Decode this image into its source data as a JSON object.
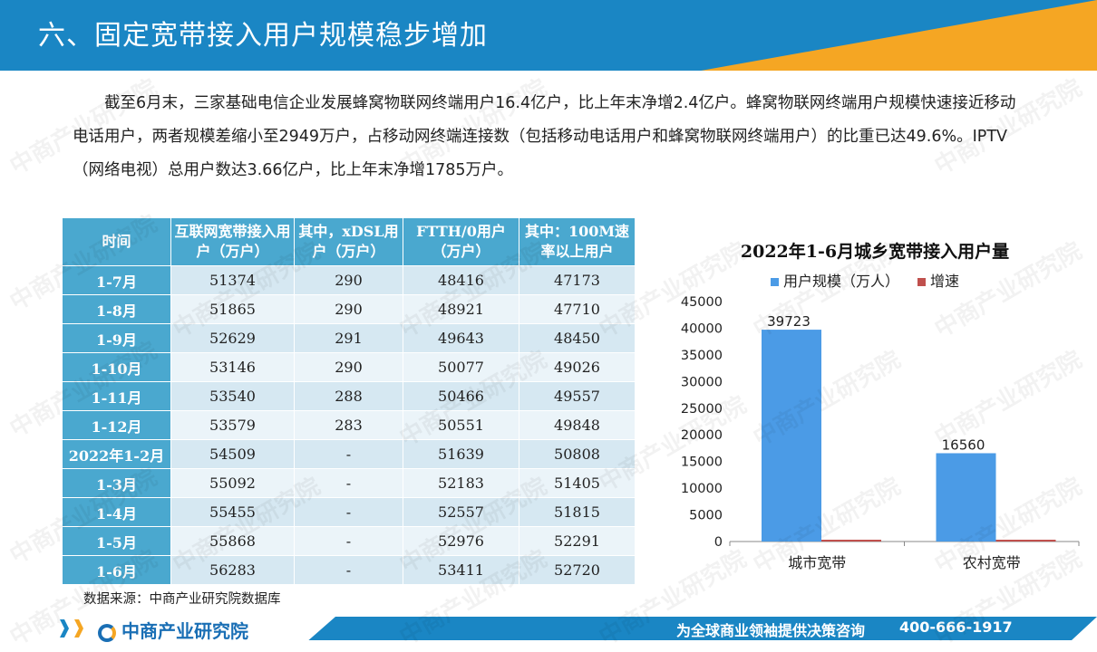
{
  "header": {
    "title": "六、固定宽带接入用户规模稳步增加"
  },
  "body": {
    "paragraph": "截至6月末，三家基础电信企业发展蜂窝物联网终端用户16.4亿户，比上年末净增2.4亿户。蜂窝物联网终端用户规模快速接近移动电话用户，两者规模差缩小至2949万户，占移动网终端连接数（包括移动电话用户和蜂窝物联网终端用户）的比重已达49.6%。IPTV（网络电视）总用户数达3.66亿户，比上年末净增1785万户。"
  },
  "table": {
    "headers": [
      "时间",
      "互联网宽带接入用户（万户）",
      "其中，xDSL用户（万户）",
      "FTTH/0用户（万户）",
      "其中：100M速率以上用户"
    ],
    "rows": [
      [
        "1-7月",
        "51374",
        "290",
        "48416",
        "47173"
      ],
      [
        "1-8月",
        "51865",
        "290",
        "48921",
        "47710"
      ],
      [
        "1-9月",
        "52629",
        "291",
        "49643",
        "48450"
      ],
      [
        "1-10月",
        "53146",
        "290",
        "50077",
        "49026"
      ],
      [
        "1-11月",
        "53540",
        "288",
        "50466",
        "49557"
      ],
      [
        "1-12月",
        "53579",
        "283",
        "50551",
        "49848"
      ],
      [
        "2022年1-2月",
        "54509",
        "-",
        "51639",
        "50808"
      ],
      [
        "1-3月",
        "55092",
        "-",
        "52183",
        "51405"
      ],
      [
        "1-4月",
        "55455",
        "-",
        "52557",
        "51815"
      ],
      [
        "1-5月",
        "55868",
        "-",
        "52976",
        "52291"
      ],
      [
        "1-6月",
        "56283",
        "-",
        "53411",
        "52720"
      ]
    ]
  },
  "source": "数据来源：中商产业研究院数据库",
  "chart_data": {
    "type": "bar",
    "title": "2022年1-6月城乡宽带接入用户量",
    "categories": [
      "城市宽带",
      "农村宽带"
    ],
    "series": [
      {
        "name": "用户规模（万人）",
        "values": [
          39723,
          16560
        ],
        "color": "#4b9be6",
        "show_labels": true
      },
      {
        "name": "增速",
        "values": [
          0,
          0
        ],
        "color": "#c0504d",
        "show_labels": false
      }
    ],
    "ylim": [
      0,
      45000
    ],
    "yticks": [
      "0",
      "5000",
      "10000",
      "15000",
      "20000",
      "25000",
      "30000",
      "35000",
      "40000",
      "45000"
    ],
    "legend": "top",
    "grid": false
  },
  "footer": {
    "logo": "中商产业研究院",
    "slogan": "为全球商业领袖提供决策咨询",
    "phone": "400-666-1917"
  },
  "watermark_text": "中商产业研究院",
  "colors": {
    "primary": "#1a86c4",
    "accent": "#f5a623",
    "table_header": "#4aa8cf"
  }
}
